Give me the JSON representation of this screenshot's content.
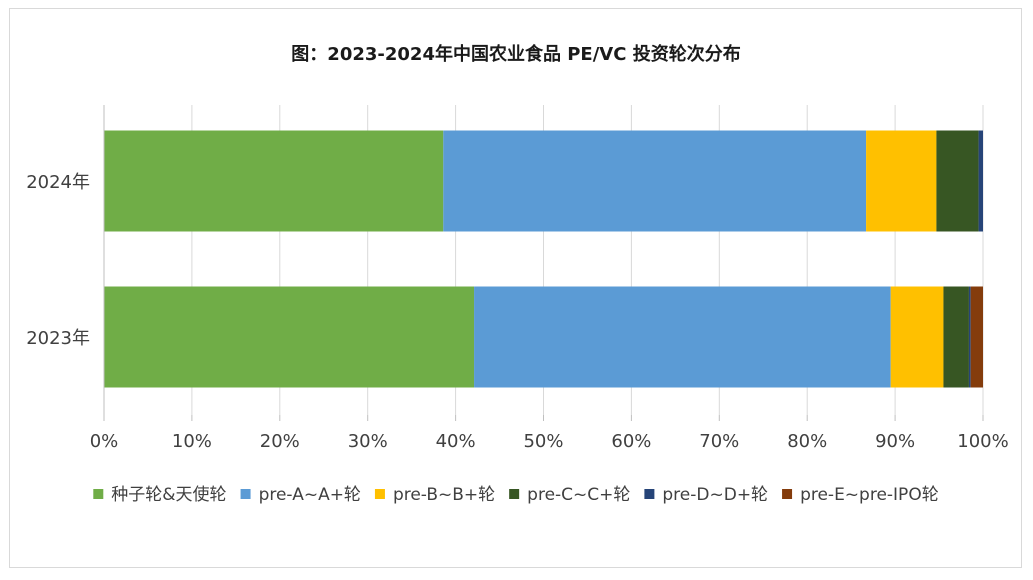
{
  "chart_data": {
    "type": "bar",
    "orientation": "horizontal",
    "stacked": true,
    "percent": true,
    "title": "图：2023-2024年中国农业食品 PE/VC 投资轮次分布",
    "categories": [
      "2024年",
      "2023年"
    ],
    "xlim": [
      0,
      100
    ],
    "xticks": [
      "0%",
      "10%",
      "20%",
      "30%",
      "40%",
      "50%",
      "60%",
      "70%",
      "80%",
      "90%",
      "100%"
    ],
    "grid": true,
    "legend_position": "bottom",
    "series": [
      {
        "name": "种子轮&天使轮",
        "color": "#70ad47",
        "values": [
          38.6,
          42.1
        ]
      },
      {
        "name": "pre-A~A+轮",
        "color": "#5b9bd5",
        "values": [
          48.1,
          47.4
        ]
      },
      {
        "name": "pre-B~B+轮",
        "color": "#ffc000",
        "values": [
          8.0,
          6.0
        ]
      },
      {
        "name": "pre-C~C+轮",
        "color": "#375623",
        "values": [
          4.8,
          2.9
        ]
      },
      {
        "name": "pre-D~D+轮",
        "color": "#264478",
        "values": [
          0.5,
          0.2
        ]
      },
      {
        "name": "pre-E~pre-IPO轮",
        "color": "#843c0c",
        "values": [
          0.0,
          1.4
        ]
      }
    ]
  }
}
